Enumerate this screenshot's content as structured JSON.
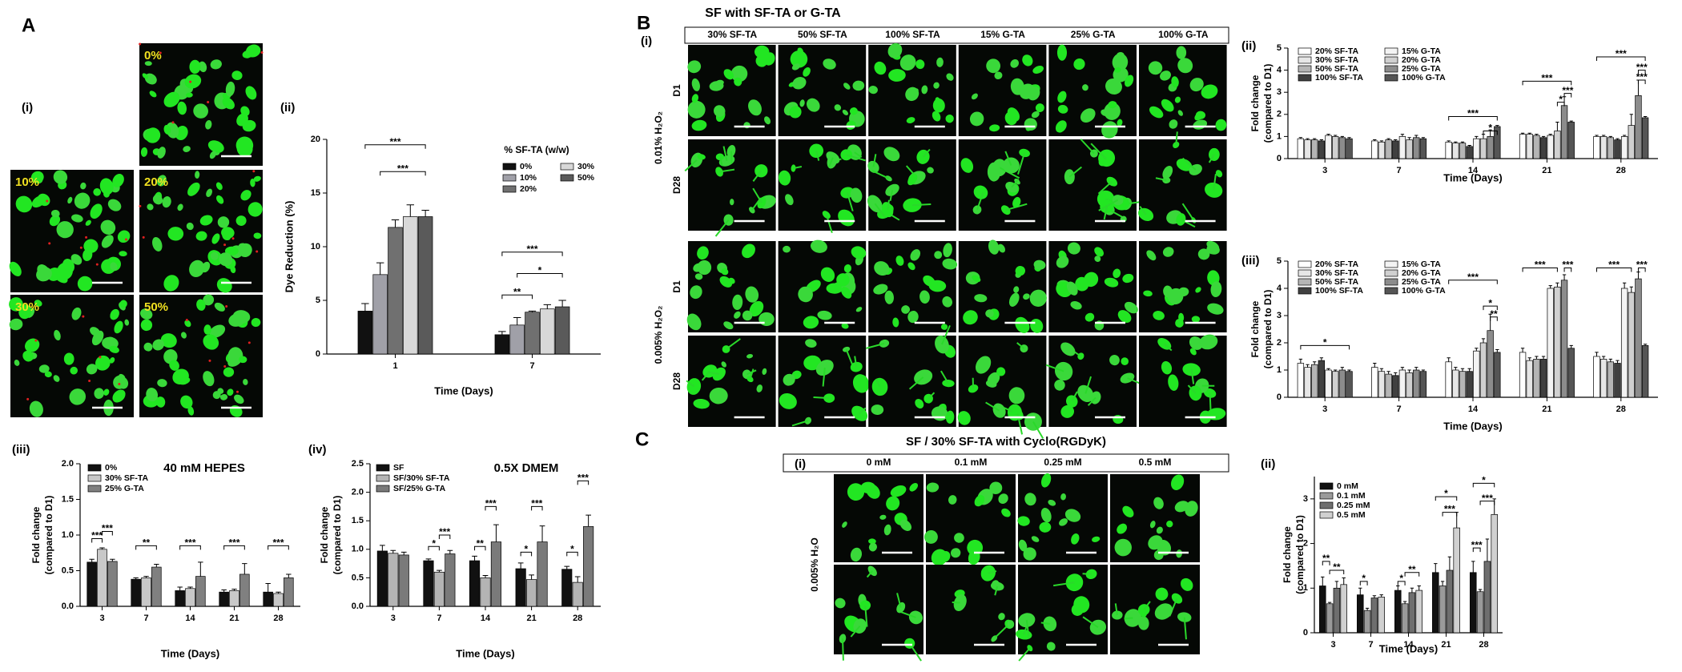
{
  "panel_labels": [
    "A",
    "(i)",
    "(ii)",
    "(iii)",
    "(iv)",
    "B",
    "(i)",
    "(ii)",
    "(iii)",
    "C",
    "(i)",
    "(ii)"
  ],
  "images_A": [
    "0%",
    "10%",
    "20%",
    "30%",
    "50%"
  ],
  "images_B": {
    "title": "SF with SF-TA or G-TA",
    "columns": [
      "30% SF-TA",
      "50% SF-TA",
      "100% SF-TA",
      "15% G-TA",
      "25% G-TA",
      "100% G-TA"
    ],
    "rows": [
      "D1",
      "D28",
      "D1",
      "D28"
    ],
    "groups": [
      "0.01% H₂O₂",
      "0.005% H₂O₂"
    ]
  },
  "images_C": {
    "title": "SF / 30% SF-TA with Cyclo(RGDyK)",
    "columns": [
      "0 mM",
      "0.1 mM",
      "0.25 mM",
      "0.5 mM"
    ],
    "group": "0.005% H₂O"
  },
  "chart_data": [
    {
      "type": "bar",
      "legend_title": "% SF-TA (w/w)",
      "categories": [
        "1",
        "7"
      ],
      "series": [
        {
          "name": "0%",
          "color": "#111111",
          "values": [
            4.0,
            1.8
          ],
          "errors": [
            0.7,
            0.3
          ]
        },
        {
          "name": "10%",
          "color": "#a0a0a8",
          "values": [
            7.4,
            2.7
          ],
          "errors": [
            1.1,
            0.7
          ]
        },
        {
          "name": "20%",
          "color": "#707070",
          "values": [
            11.8,
            3.9
          ],
          "errors": [
            0.7,
            0.1
          ]
        },
        {
          "name": "30%",
          "color": "#d8d8d8",
          "values": [
            12.8,
            4.2
          ],
          "errors": [
            1.1,
            0.4
          ]
        },
        {
          "name": "50%",
          "color": "#5a5a5a",
          "values": [
            12.8,
            4.4
          ],
          "errors": [
            0.6,
            0.6
          ]
        }
      ],
      "ylim": [
        0,
        20
      ],
      "yticks": [
        0,
        5,
        10,
        15,
        20
      ],
      "xlabel": "Time (Days)",
      "ylabel": [
        "Dye Reduction (%)"
      ],
      "annotations": [
        "***",
        "***",
        "***",
        "*",
        "**"
      ]
    },
    {
      "type": "bar",
      "title": "40 mM HEPES",
      "categories": [
        "3",
        "7",
        "14",
        "21",
        "28"
      ],
      "series": [
        {
          "name": "0%",
          "color": "#111111",
          "values": [
            0.62,
            0.38,
            0.22,
            0.2,
            0.2
          ],
          "errors": [
            0.04,
            0.02,
            0.05,
            0.03,
            0.12
          ]
        },
        {
          "name": "30% SF-TA",
          "color": "#c8c8c8",
          "values": [
            0.8,
            0.4,
            0.25,
            0.22,
            0.18
          ],
          "errors": [
            0.02,
            0.02,
            0.02,
            0.02,
            0.02
          ]
        },
        {
          "name": "25% G-TA",
          "color": "#808080",
          "values": [
            0.63,
            0.55,
            0.42,
            0.45,
            0.4
          ],
          "errors": [
            0.03,
            0.04,
            0.2,
            0.15,
            0.05
          ]
        }
      ],
      "ylim": [
        0,
        2
      ],
      "yticks": [
        {
          "value": 0,
          "label": "0.0"
        },
        {
          "value": 0.5,
          "label": "0.5"
        },
        {
          "value": 1,
          "label": "1.0"
        },
        {
          "value": 1.5,
          "label": "1.5"
        },
        {
          "value": 2,
          "label": "2.0"
        }
      ],
      "xlabel": "Time (Days)",
      "ylabel": [
        "Fold change",
        "(compared to D1)"
      ],
      "annotations": [
        "***",
        "***",
        "**",
        "***",
        "***",
        "***"
      ]
    },
    {
      "type": "bar",
      "title": "0.5X DMEM",
      "categories": [
        "3",
        "7",
        "14",
        "21",
        "28"
      ],
      "series": [
        {
          "name": "SF",
          "color": "#111111",
          "values": [
            0.97,
            0.8,
            0.8,
            0.66,
            0.65
          ],
          "errors": [
            0.1,
            0.03,
            0.08,
            0.1,
            0.05
          ]
        },
        {
          "name": "SF/30% SF-TA",
          "color": "#b4b4b4",
          "values": [
            0.93,
            0.6,
            0.5,
            0.47,
            0.42
          ],
          "errors": [
            0.05,
            0.03,
            0.04,
            0.08,
            0.1
          ]
        },
        {
          "name": "SF/25% G-TA",
          "color": "#7a7a7a",
          "values": [
            0.9,
            0.92,
            1.13,
            1.13,
            1.4
          ],
          "errors": [
            0.05,
            0.06,
            0.3,
            0.28,
            0.2
          ]
        }
      ],
      "ylim": [
        0,
        2.5
      ],
      "yticks": [
        {
          "value": 0,
          "label": "0.0"
        },
        {
          "value": 0.5,
          "label": "0.5"
        },
        {
          "value": 1,
          "label": "1.0"
        },
        {
          "value": 1.5,
          "label": "1.5"
        },
        {
          "value": 2,
          "label": "2.0"
        },
        {
          "value": 2.5,
          "label": "2.5"
        }
      ],
      "xlabel": "Time (Days)",
      "ylabel": [
        "Fold change",
        "(compared to D1)"
      ],
      "annotations": [
        "*",
        "***",
        "**",
        "***",
        "*",
        "***",
        "*",
        "***"
      ]
    },
    {
      "type": "bar",
      "categories": [
        "3",
        "7",
        "14",
        "21",
        "28"
      ],
      "series": [
        {
          "name": "20% SF-TA",
          "color": "#ffffff",
          "values": [
            0.9,
            0.8,
            0.75,
            1.1,
            1.0
          ],
          "errors": [
            0.05,
            0.05,
            0.05,
            0.05,
            0.05
          ]
        },
        {
          "name": "30% SF-TA",
          "color": "#e6e6e6",
          "values": [
            0.85,
            0.75,
            0.7,
            1.1,
            1.0
          ],
          "errors": [
            0.05,
            0.05,
            0.05,
            0.05,
            0.05
          ]
        },
        {
          "name": "50% SF-TA",
          "color": "#b5b5b5",
          "values": [
            0.85,
            0.85,
            0.7,
            1.05,
            0.95
          ],
          "errors": [
            0.05,
            0.05,
            0.05,
            0.05,
            0.05
          ]
        },
        {
          "name": "100% SF-TA",
          "color": "#404040",
          "values": [
            0.8,
            0.8,
            0.55,
            0.95,
            0.85
          ],
          "errors": [
            0.05,
            0.05,
            0.05,
            0.05,
            0.05
          ]
        },
        {
          "name": "15% G-TA",
          "color": "#f3f3f3",
          "values": [
            1.05,
            1.0,
            0.9,
            1.05,
            1.0
          ],
          "errors": [
            0.05,
            0.1,
            0.1,
            0.05,
            0.05
          ]
        },
        {
          "name": "20% G-TA",
          "color": "#d0d0d0",
          "values": [
            1.0,
            0.85,
            0.9,
            1.25,
            1.5
          ],
          "errors": [
            0.05,
            0.1,
            0.2,
            0.4,
            0.5
          ]
        },
        {
          "name": "25% G-TA",
          "color": "#8c8c8c",
          "values": [
            0.95,
            0.95,
            1.0,
            2.4,
            2.85
          ],
          "errors": [
            0.05,
            0.1,
            0.3,
            0.4,
            0.7
          ]
        },
        {
          "name": "100% G-TA",
          "color": "#555555",
          "values": [
            0.9,
            0.9,
            1.45,
            1.65,
            1.85
          ],
          "errors": [
            0.05,
            0.05,
            0.05,
            0.05,
            0.05
          ]
        }
      ],
      "ylim": [
        0,
        5
      ],
      "yticks": [
        0,
        1,
        2,
        3,
        4,
        5
      ],
      "xlabel": "Time (Days)",
      "ylabel": [
        "Fold change",
        "(compared to D1)"
      ],
      "annotations": [
        "***",
        "*",
        "***",
        "***",
        "*",
        "***",
        "***",
        "***"
      ]
    },
    {
      "type": "bar",
      "categories": [
        "3",
        "7",
        "14",
        "21",
        "28"
      ],
      "series": [
        {
          "name": "20% SF-TA",
          "color": "#ffffff",
          "values": [
            1.25,
            1.1,
            1.3,
            1.65,
            1.5
          ],
          "errors": [
            0.15,
            0.15,
            0.15,
            0.15,
            0.15
          ]
        },
        {
          "name": "30% SF-TA",
          "color": "#e6e6e6",
          "values": [
            1.1,
            0.95,
            1.0,
            1.35,
            1.4
          ],
          "errors": [
            0.1,
            0.1,
            0.1,
            0.1,
            0.1
          ]
        },
        {
          "name": "50% SF-TA",
          "color": "#b5b5b5",
          "values": [
            1.2,
            0.85,
            0.95,
            1.4,
            1.3
          ],
          "errors": [
            0.1,
            0.1,
            0.1,
            0.1,
            0.1
          ]
        },
        {
          "name": "100% SF-TA",
          "color": "#404040",
          "values": [
            1.35,
            0.8,
            0.95,
            1.4,
            1.25
          ],
          "errors": [
            0.1,
            0.1,
            0.1,
            0.1,
            0.1
          ]
        },
        {
          "name": "15% G-TA",
          "color": "#f3f3f3",
          "values": [
            1.0,
            1.0,
            1.7,
            4.0,
            4.0
          ],
          "errors": [
            0.05,
            0.1,
            0.1,
            0.1,
            0.2
          ]
        },
        {
          "name": "20% G-TA",
          "color": "#d0d0d0",
          "values": [
            0.95,
            0.9,
            2.0,
            4.05,
            3.85
          ],
          "errors": [
            0.05,
            0.1,
            0.15,
            0.15,
            0.2
          ]
        },
        {
          "name": "25% G-TA",
          "color": "#8c8c8c",
          "values": [
            1.0,
            1.0,
            2.45,
            4.3,
            4.35
          ],
          "errors": [
            0.1,
            0.1,
            0.6,
            0.2,
            0.25
          ]
        },
        {
          "name": "100% G-TA",
          "color": "#555555",
          "values": [
            0.95,
            0.95,
            1.65,
            1.8,
            1.9
          ],
          "errors": [
            0.05,
            0.05,
            0.1,
            0.1,
            0.05
          ]
        }
      ],
      "ylim": [
        0,
        5
      ],
      "yticks": [
        0,
        1,
        2,
        3,
        4,
        5
      ],
      "xlabel": "Time (Days)",
      "ylabel": [
        "Fold change",
        "(compared to D1)"
      ],
      "annotations": [
        "*",
        "***",
        "*",
        "**",
        "***",
        "***",
        "***",
        "***"
      ]
    },
    {
      "type": "bar",
      "categories": [
        "3",
        "7",
        "14",
        "21",
        "28"
      ],
      "series": [
        {
          "name": "0 mM",
          "color": "#111111",
          "values": [
            1.05,
            0.85,
            0.95,
            1.35,
            1.35
          ],
          "errors": [
            0.2,
            0.15,
            0.1,
            0.2,
            0.25
          ]
        },
        {
          "name": "0.1 mM",
          "color": "#9a9a9a",
          "values": [
            0.65,
            0.5,
            0.65,
            1.05,
            0.92
          ],
          "errors": [
            0.03,
            0.05,
            0.05,
            0.1,
            0.05
          ]
        },
        {
          "name": "0.25 mM",
          "color": "#6e6e6e",
          "values": [
            1.0,
            0.78,
            0.9,
            1.4,
            1.6
          ],
          "errors": [
            0.15,
            0.05,
            0.1,
            0.3,
            0.5
          ]
        },
        {
          "name": "0.5 mM",
          "color": "#d0d0d0",
          "values": [
            1.08,
            0.8,
            0.95,
            2.35,
            2.65
          ],
          "errors": [
            0.15,
            0.05,
            0.1,
            0.35,
            0.35
          ]
        }
      ],
      "ylim": [
        0,
        3.5
      ],
      "yticks": [
        0,
        1,
        2,
        3
      ],
      "xlabel": "Time (Days)",
      "ylabel": [
        "Fold change",
        "(compared to D1)"
      ],
      "annotations": [
        "**",
        "**",
        "*",
        "*",
        "**",
        "*",
        "***",
        "*",
        "***",
        "***"
      ]
    }
  ]
}
